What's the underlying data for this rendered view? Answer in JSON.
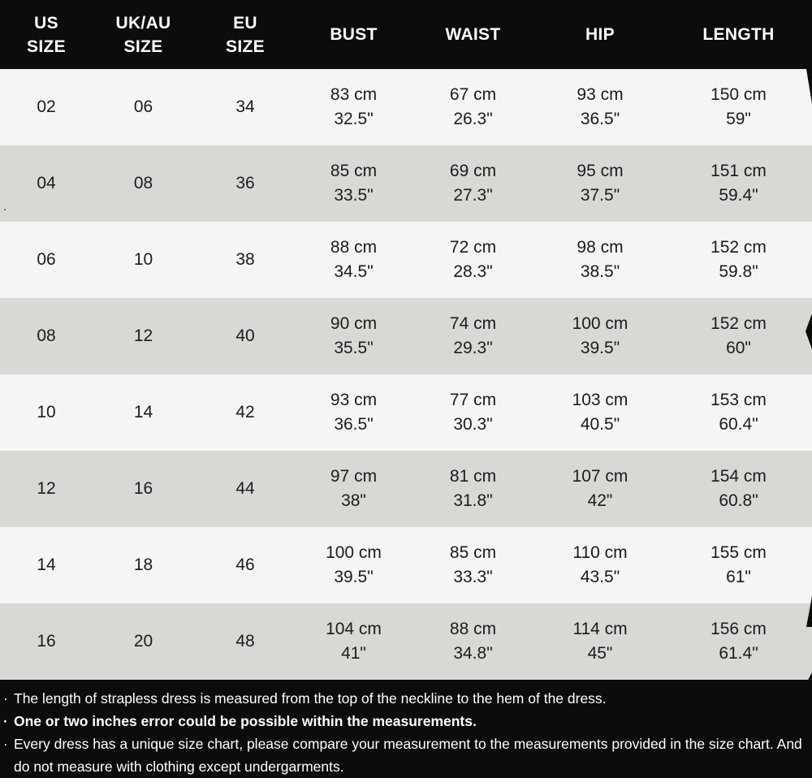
{
  "chart_data": {
    "type": "table",
    "title": "Dress size chart",
    "columns": [
      "US SIZE",
      "UK/AU SIZE",
      "EU SIZE",
      "BUST",
      "WAIST",
      "HIP",
      "LENGTH"
    ],
    "header_lines": [
      [
        "US",
        "SIZE"
      ],
      [
        "UK/AU",
        "SIZE"
      ],
      [
        "EU",
        "SIZE"
      ],
      [
        "BUST"
      ],
      [
        "WAIST"
      ],
      [
        "HIP"
      ],
      [
        "LENGTH"
      ]
    ],
    "rows": [
      [
        [
          "02"
        ],
        [
          "06"
        ],
        [
          "34"
        ],
        [
          "83 cm",
          "32.5\""
        ],
        [
          "67 cm",
          "26.3\""
        ],
        [
          "93 cm",
          "36.5\""
        ],
        [
          "150 cm",
          "59\""
        ]
      ],
      [
        [
          "04"
        ],
        [
          "08"
        ],
        [
          "36"
        ],
        [
          "85 cm",
          "33.5\""
        ],
        [
          "69 cm",
          "27.3\""
        ],
        [
          "95 cm",
          "37.5\""
        ],
        [
          "151 cm",
          "59.4\""
        ]
      ],
      [
        [
          "06"
        ],
        [
          "10"
        ],
        [
          "38"
        ],
        [
          "88 cm",
          "34.5\""
        ],
        [
          "72 cm",
          "28.3\""
        ],
        [
          "98 cm",
          "38.5\""
        ],
        [
          "152 cm",
          "59.8\""
        ]
      ],
      [
        [
          "08"
        ],
        [
          "12"
        ],
        [
          "40"
        ],
        [
          "90 cm",
          "35.5\""
        ],
        [
          "74 cm",
          "29.3\""
        ],
        [
          "100 cm",
          "39.5\""
        ],
        [
          "152 cm",
          "60\""
        ]
      ],
      [
        [
          "10"
        ],
        [
          "14"
        ],
        [
          "42"
        ],
        [
          "93 cm",
          "36.5\""
        ],
        [
          "77 cm",
          "30.3\""
        ],
        [
          "103 cm",
          "40.5\""
        ],
        [
          "153 cm",
          "60.4\""
        ]
      ],
      [
        [
          "12"
        ],
        [
          "16"
        ],
        [
          "44"
        ],
        [
          "97 cm",
          "38\""
        ],
        [
          "81 cm",
          "31.8\""
        ],
        [
          "107 cm",
          "42\""
        ],
        [
          "154 cm",
          "60.8\""
        ]
      ],
      [
        [
          "14"
        ],
        [
          "18"
        ],
        [
          "46"
        ],
        [
          "100 cm",
          "39.5\""
        ],
        [
          "85 cm",
          "33.3\""
        ],
        [
          "110 cm",
          "43.5\""
        ],
        [
          "155 cm",
          "61\""
        ]
      ],
      [
        [
          "16"
        ],
        [
          "20"
        ],
        [
          "48"
        ],
        [
          "104 cm",
          "41\""
        ],
        [
          "88 cm",
          "34.8\""
        ],
        [
          "114 cm",
          "45\""
        ],
        [
          "156 cm",
          "61.4\""
        ]
      ]
    ]
  },
  "notes": [
    {
      "bullet": "·",
      "text": "The length of strapless dress is measured from the top of the neckline to the hem of the dress.",
      "bold": false
    },
    {
      "bullet": "·",
      "text": "One or two inches error could be possible within the measurements.",
      "bold": true
    },
    {
      "bullet": "·",
      "text": "Every dress has a unique size chart, please compare your measurement to the measurements provided in the size chart. And do not measure with clothing except undergarments.",
      "bold": false
    }
  ],
  "artifact_dot": ".",
  "colors": {
    "header_bg": "#0c0c0c",
    "header_text": "#ffffff",
    "row_light": "#f6f5f3",
    "row_dark": "#d9d8d5",
    "footer_bg": "#0c0c0c",
    "footer_text": "#ffffff",
    "text": "#1c1c1c"
  }
}
